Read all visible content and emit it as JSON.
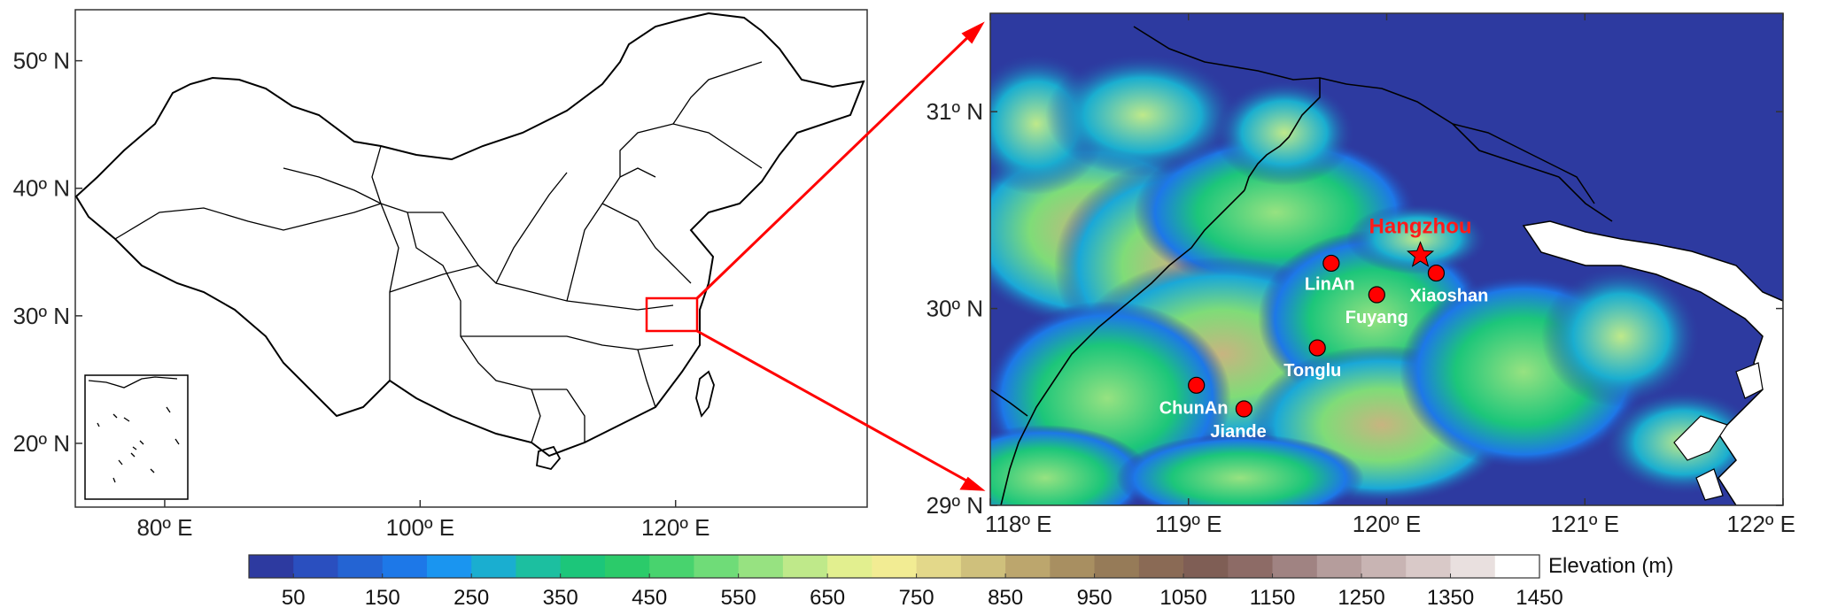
{
  "left_map": {
    "lat_ticks": [
      {
        "lat": 50,
        "label": "50º  N"
      },
      {
        "lat": 40,
        "label": "40º  N"
      },
      {
        "lat": 30,
        "label": "30º  N"
      },
      {
        "lat": 20,
        "label": "20º  N"
      }
    ],
    "lon_ticks": [
      {
        "lon": 80,
        "label": "80º  E"
      },
      {
        "lon": 100,
        "label": "100º  E"
      },
      {
        "lon": 120,
        "label": "120º  E"
      }
    ],
    "lon_range": [
      73,
      135
    ],
    "lat_range": [
      15,
      54
    ]
  },
  "right_map": {
    "lat_ticks": [
      {
        "lat": 31,
        "label": "31º  N"
      },
      {
        "lat": 30,
        "label": "30º  N"
      },
      {
        "lat": 29,
        "label": "29º  N"
      }
    ],
    "lon_ticks": [
      {
        "lon": 118,
        "label": "118º  E"
      },
      {
        "lon": 119,
        "label": "119º  E"
      },
      {
        "lon": 120,
        "label": "120º  E"
      },
      {
        "lon": 121,
        "label": "121º  E"
      },
      {
        "lon": 122,
        "label": "122º  E"
      }
    ],
    "lon_range": [
      118,
      122
    ],
    "lat_range": [
      29,
      31.5
    ],
    "capital": {
      "name": "Hangzhou",
      "lon": 120.17,
      "lat": 30.27
    },
    "stations": [
      {
        "name": "LinAn",
        "lon": 119.72,
        "lat": 30.23
      },
      {
        "name": "Fuyang",
        "lon": 119.95,
        "lat": 30.07
      },
      {
        "name": "Xiaoshan",
        "lon": 120.25,
        "lat": 30.18
      },
      {
        "name": "Tonglu",
        "lon": 119.65,
        "lat": 29.8
      },
      {
        "name": "ChunAn",
        "lon": 119.04,
        "lat": 29.61
      },
      {
        "name": "Jiande",
        "lon": 119.28,
        "lat": 29.49
      }
    ]
  },
  "colorbar": {
    "title": "Elevation (m)",
    "tick_labels": [
      "50",
      "150",
      "250",
      "350",
      "450",
      "550",
      "650",
      "750",
      "850",
      "950",
      "1050",
      "1150",
      "1250",
      "1350",
      "1450"
    ],
    "colors": [
      "#2d3aa0",
      "#2a4fbf",
      "#2464d3",
      "#1d78e8",
      "#1a95f0",
      "#1aaed0",
      "#1cbfa0",
      "#1cc67a",
      "#2bcb6a",
      "#48d36e",
      "#6fdc78",
      "#97e281",
      "#bfe98a",
      "#e2ef8f",
      "#f2ec93",
      "#e3d88a",
      "#cfc07c",
      "#bca66d",
      "#a88f61",
      "#967b58",
      "#8a6a55",
      "#7f5e55",
      "#8d6b66",
      "#a08382",
      "#b59d9c",
      "#c8b4b3",
      "#d9c9c8",
      "#e9e0df",
      "#ffffff"
    ]
  }
}
